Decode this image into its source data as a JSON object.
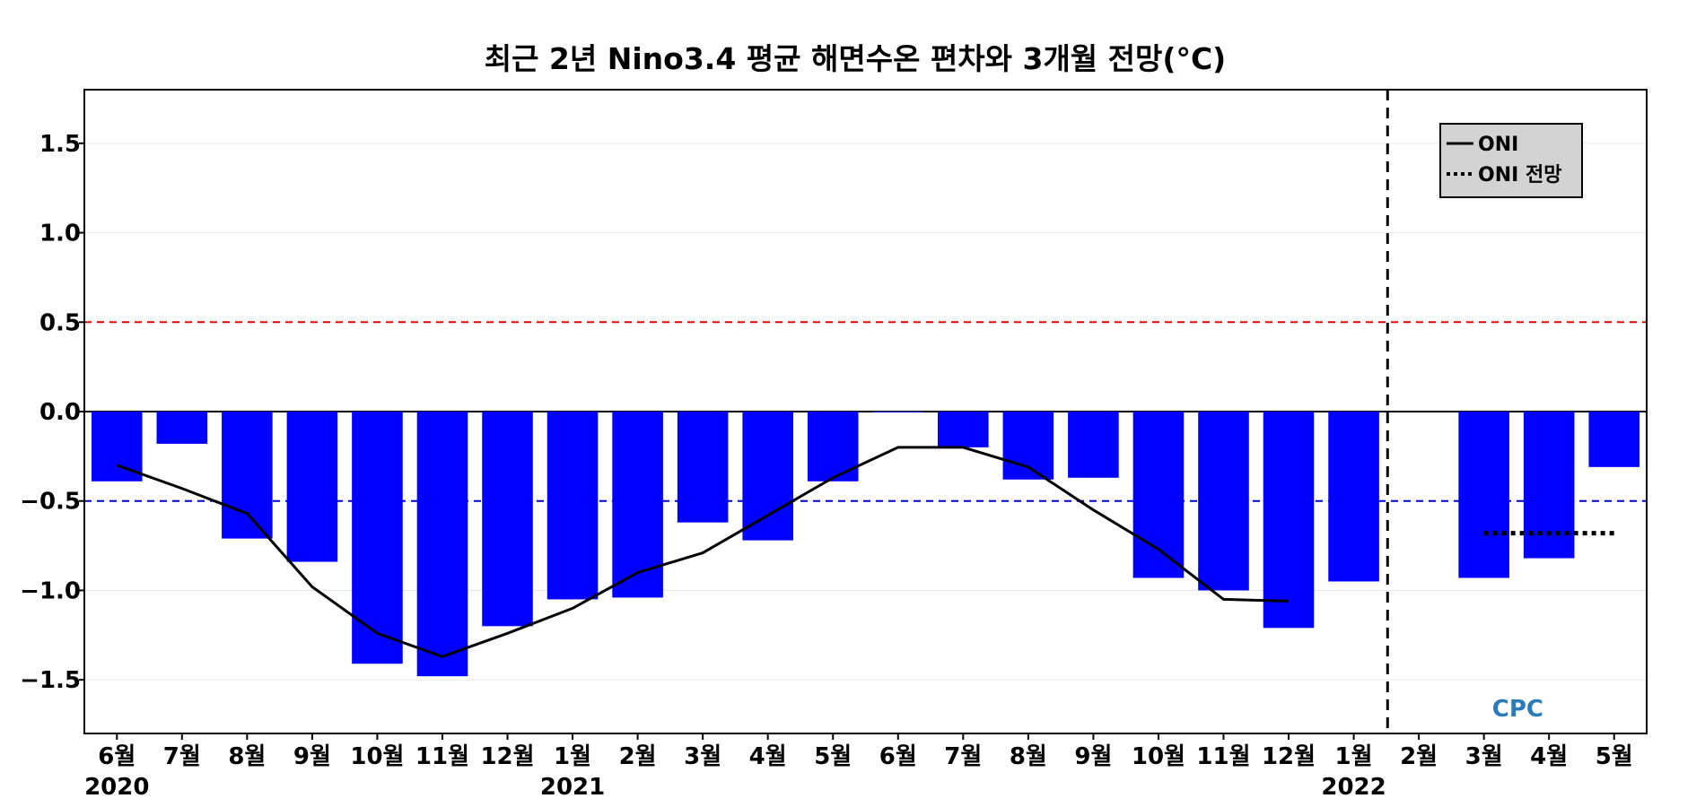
{
  "chart_data": {
    "type": "bar",
    "title": "최근 2년 Nino3.4 평균 해면수온 편차와 3개월 전망(°C)",
    "xlabel": "",
    "ylabel": "",
    "ylim": [
      -1.8,
      1.8
    ],
    "yticks": [
      1.5,
      1.0,
      0.5,
      0.0,
      -0.5,
      -1.0,
      -1.5
    ],
    "ytick_labels": [
      "1.5",
      "1.0",
      "0.5",
      "0.0",
      "−0.5",
      "−1.0",
      "−1.5"
    ],
    "categories": [
      "6월",
      "7월",
      "8월",
      "9월",
      "10월",
      "11월",
      "12월",
      "1월",
      "2월",
      "3월",
      "4월",
      "5월",
      "6월",
      "7월",
      "8월",
      "9월",
      "10월",
      "11월",
      "12월",
      "1월",
      "2월",
      "3월",
      "4월",
      "5월"
    ],
    "year_labels": [
      {
        "label": "2020",
        "category_index": 0
      },
      {
        "label": "2021",
        "category_index": 7
      },
      {
        "label": "2022",
        "category_index": 19
      }
    ],
    "series": [
      {
        "kind": "bar",
        "values": [
          -0.39,
          -0.18,
          -0.71,
          -0.84,
          -1.41,
          -1.48,
          -1.2,
          -1.05,
          -1.04,
          -0.62,
          -0.72,
          -0.39,
          0.0,
          -0.2,
          -0.38,
          -0.37,
          -0.93,
          -1.0,
          -1.21,
          -0.95,
          null,
          -0.93,
          -0.82,
          -0.31
        ],
        "color": "#0000ff"
      },
      {
        "kind": "line",
        "name": "ONI",
        "values": [
          -0.3,
          -0.43,
          -0.57,
          -0.98,
          -1.24,
          -1.37,
          -1.24,
          -1.1,
          -0.9,
          -0.79,
          -0.58,
          -0.37,
          -0.2,
          -0.2,
          -0.31,
          -0.55,
          -0.77,
          -1.05,
          -1.06,
          null,
          null,
          null,
          null,
          null
        ],
        "color": "#000000"
      },
      {
        "kind": "line",
        "name": "ONI 전망",
        "style": "dotted",
        "values": [
          null,
          null,
          null,
          null,
          null,
          null,
          null,
          null,
          null,
          null,
          null,
          null,
          null,
          null,
          null,
          null,
          null,
          null,
          null,
          null,
          null,
          -0.68,
          -0.68,
          -0.68
        ],
        "color": "#000000"
      }
    ],
    "reference_lines": [
      {
        "y": 0.5,
        "color": "#dd0000",
        "style": "dashed"
      },
      {
        "y": -0.5,
        "color": "#0000cc",
        "style": "dashed"
      },
      {
        "y": 0.0,
        "color": "#000000",
        "style": "solid"
      }
    ],
    "forecast_divider_category_index": 20,
    "grid": true,
    "legend_position": "top-right",
    "legend": [
      {
        "label": "ONI",
        "style": "solid"
      },
      {
        "label": "ONI 전망",
        "style": "dotted"
      }
    ],
    "logo": "CPC"
  }
}
